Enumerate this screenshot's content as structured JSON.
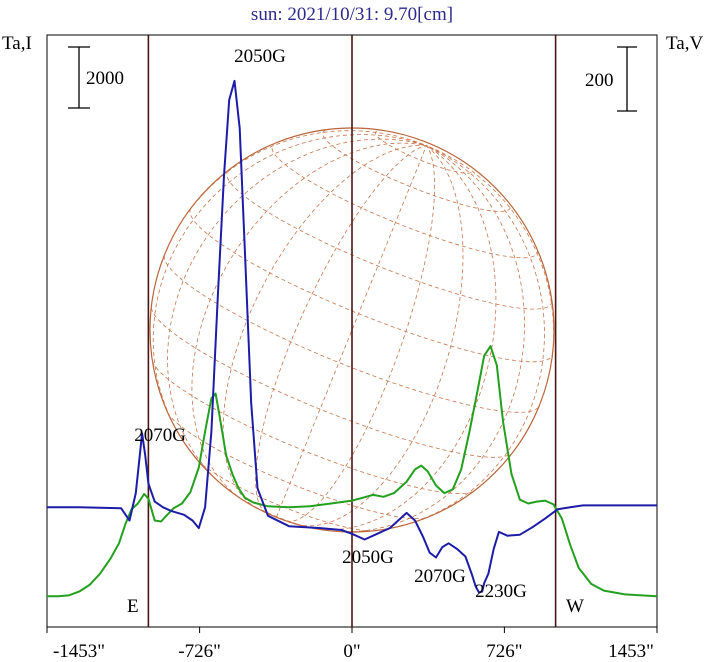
{
  "title": "sun: 2021/10/31: 9.70[cm]",
  "left_axis_label": "Ta,I",
  "right_axis_label": "Ta,V",
  "scale_bars": {
    "left_value": "2000",
    "right_value": "200"
  },
  "limb_labels": {
    "east": "E",
    "west": "W"
  },
  "colors": {
    "intensity": "#1c1ca8",
    "polarization": "#22a01e",
    "disk": "#b8653a",
    "grid": "#c8744a",
    "vlines": "#4a1410",
    "title": "#2a2a8a"
  },
  "chart_data": {
    "type": "line",
    "title": "sun: 2021/10/31: 9.70[cm]",
    "xlabel": "",
    "xlim": [
      -1453,
      1453
    ],
    "x_unit": "arcsec",
    "x_ticks": [
      {
        "value": -1453,
        "label": "-1453\""
      },
      {
        "value": -726,
        "label": "-726\""
      },
      {
        "value": 0,
        "label": "0\""
      },
      {
        "value": 726,
        "label": "726\""
      },
      {
        "value": 1453,
        "label": "1453\""
      }
    ],
    "vertical_markers": [
      -970,
      0,
      970
    ],
    "ylim": [
      0,
      5700
    ],
    "series": [
      {
        "name": "Ta,I",
        "color": "#1c1ca8",
        "points": [
          [
            -1453,
            1000
          ],
          [
            -1300,
            1000
          ],
          [
            -1100,
            990
          ],
          [
            -1060,
            860
          ],
          [
            -1030,
            1150
          ],
          [
            -1000,
            1780
          ],
          [
            -985,
            1550
          ],
          [
            -970,
            1250
          ],
          [
            -940,
            1060
          ],
          [
            -900,
            1000
          ],
          [
            -860,
            960
          ],
          [
            -800,
            920
          ],
          [
            -760,
            860
          ],
          [
            -730,
            780
          ],
          [
            -700,
            1000
          ],
          [
            -670,
            1800
          ],
          [
            -640,
            3200
          ],
          [
            -610,
            4500
          ],
          [
            -585,
            5300
          ],
          [
            -560,
            5500
          ],
          [
            -535,
            5000
          ],
          [
            -510,
            3700
          ],
          [
            -480,
            2100
          ],
          [
            -450,
            1200
          ],
          [
            -400,
            910
          ],
          [
            -300,
            800
          ],
          [
            -150,
            780
          ],
          [
            -50,
            760
          ],
          [
            0,
            720
          ],
          [
            60,
            660
          ],
          [
            120,
            720
          ],
          [
            180,
            780
          ],
          [
            230,
            880
          ],
          [
            260,
            940
          ],
          [
            300,
            860
          ],
          [
            340,
            680
          ],
          [
            370,
            520
          ],
          [
            400,
            470
          ],
          [
            430,
            580
          ],
          [
            460,
            620
          ],
          [
            500,
            560
          ],
          [
            540,
            480
          ],
          [
            570,
            300
          ],
          [
            590,
            160
          ],
          [
            605,
            100
          ],
          [
            620,
            110
          ],
          [
            630,
            200
          ],
          [
            650,
            300
          ],
          [
            675,
            560
          ],
          [
            700,
            740
          ],
          [
            740,
            700
          ],
          [
            800,
            710
          ],
          [
            860,
            790
          ],
          [
            920,
            880
          ],
          [
            980,
            980
          ],
          [
            1040,
            1000
          ],
          [
            1100,
            1020
          ],
          [
            1453,
            1020
          ]
        ]
      },
      {
        "name": "Ta,V",
        "color": "#22a01e",
        "points": [
          [
            -1453,
            60
          ],
          [
            -1400,
            60
          ],
          [
            -1350,
            70
          ],
          [
            -1300,
            110
          ],
          [
            -1250,
            180
          ],
          [
            -1200,
            300
          ],
          [
            -1150,
            460
          ],
          [
            -1110,
            620
          ],
          [
            -1080,
            820
          ],
          [
            -1050,
            980
          ],
          [
            -1020,
            1040
          ],
          [
            -990,
            1140
          ],
          [
            -970,
            1090
          ],
          [
            -940,
            860
          ],
          [
            -910,
            850
          ],
          [
            -880,
            920
          ],
          [
            -850,
            990
          ],
          [
            -810,
            1040
          ],
          [
            -770,
            1160
          ],
          [
            -730,
            1420
          ],
          [
            -700,
            1800
          ],
          [
            -670,
            2150
          ],
          [
            -650,
            2200
          ],
          [
            -630,
            1950
          ],
          [
            -600,
            1550
          ],
          [
            -570,
            1350
          ],
          [
            -540,
            1200
          ],
          [
            -510,
            1100
          ],
          [
            -470,
            1050
          ],
          [
            -400,
            1010
          ],
          [
            -300,
            1000
          ],
          [
            -200,
            1010
          ],
          [
            -100,
            1040
          ],
          [
            0,
            1070
          ],
          [
            50,
            1100
          ],
          [
            100,
            1130
          ],
          [
            150,
            1110
          ],
          [
            200,
            1150
          ],
          [
            260,
            1270
          ],
          [
            300,
            1400
          ],
          [
            330,
            1440
          ],
          [
            360,
            1380
          ],
          [
            400,
            1230
          ],
          [
            440,
            1150
          ],
          [
            480,
            1190
          ],
          [
            520,
            1400
          ],
          [
            560,
            1800
          ],
          [
            600,
            2250
          ],
          [
            630,
            2600
          ],
          [
            660,
            2700
          ],
          [
            690,
            2500
          ],
          [
            720,
            1900
          ],
          [
            760,
            1350
          ],
          [
            800,
            1080
          ],
          [
            840,
            1040
          ],
          [
            880,
            1060
          ],
          [
            920,
            1070
          ],
          [
            960,
            1030
          ],
          [
            1000,
            880
          ],
          [
            1040,
            600
          ],
          [
            1080,
            360
          ],
          [
            1140,
            190
          ],
          [
            1200,
            120
          ],
          [
            1300,
            80
          ],
          [
            1453,
            60
          ]
        ]
      }
    ],
    "annotations": [
      {
        "text": "2050G",
        "x": -560,
        "series": "Ta,I"
      },
      {
        "text": "2070G",
        "x": -990,
        "series": "Ta,I"
      },
      {
        "text": "2050G",
        "x": 60,
        "series": "Ta,I"
      },
      {
        "text": "2070G",
        "x": 400,
        "series": "Ta,I"
      },
      {
        "text": "2230G",
        "x": 620,
        "series": "Ta,I"
      }
    ]
  }
}
